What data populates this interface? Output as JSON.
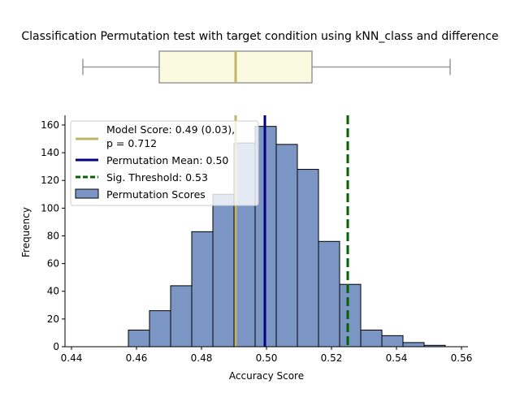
{
  "chart_data": {
    "type": "bar",
    "title": "Classification Permutation test with target condition using kNN_class and difference",
    "xlabel": "Accuracy Score",
    "ylabel": "Frequency",
    "xlim": [
      0.438,
      0.562
    ],
    "ylim": [
      0,
      167
    ],
    "x_ticks": [
      0.44,
      0.46,
      0.48,
      0.5,
      0.52,
      0.54,
      0.56
    ],
    "y_ticks": [
      0,
      20,
      40,
      60,
      80,
      100,
      120,
      140,
      160
    ],
    "legend_position": "top-left",
    "bin_width": 0.0065,
    "histogram": {
      "name": "Permutation Scores",
      "color": "#7b96c4",
      "edge_color": "#000000",
      "bin_starts": [
        0.4575,
        0.464,
        0.4705,
        0.477,
        0.4835,
        0.49,
        0.4965,
        0.503,
        0.5095,
        0.516,
        0.5225,
        0.529,
        0.5355,
        0.542,
        0.5485
      ],
      "counts": [
        12,
        26,
        44,
        83,
        110,
        147,
        159,
        146,
        128,
        76,
        45,
        12,
        8,
        3,
        1
      ]
    },
    "lines": [
      {
        "name": "Model Score: 0.49 (0.03),\np = 0.712",
        "label_lines": [
          "Model Score: 0.49 (0.03),",
          "p = 0.712"
        ],
        "x": 0.4905,
        "color": "#c2b466",
        "style": "solid"
      },
      {
        "name": "Permutation Mean: 0.50",
        "label_lines": [
          "Permutation Mean: 0.50"
        ],
        "x": 0.4995,
        "color": "#000080",
        "style": "solid"
      },
      {
        "name": "Sig. Threshold: 0.53",
        "label_lines": [
          "Sig. Threshold: 0.53"
        ],
        "x": 0.525,
        "color": "#006400",
        "style": "dashed"
      }
    ],
    "boxplot": {
      "whisker_low": 0.4435,
      "q1": 0.467,
      "median": 0.4905,
      "q3": 0.514,
      "whisker_high": 0.5565,
      "fill": "#fafae0",
      "edge_color": "#999999",
      "median_color": "#c2b466"
    }
  }
}
